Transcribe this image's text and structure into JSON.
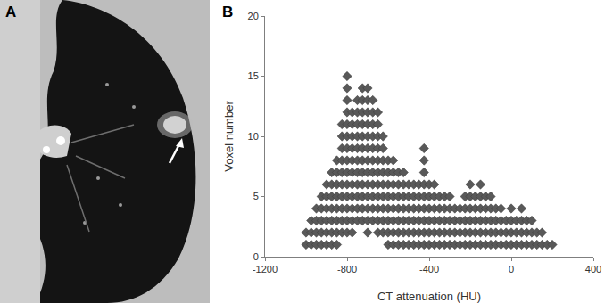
{
  "panel_labels": [
    "A",
    "B"
  ],
  "chart_data": {
    "type": "scatter",
    "marker": "diamond",
    "color": "#595959",
    "x_label": "CT attenuation (HU)",
    "y_label": "Voxel number",
    "xlim": [
      -1200,
      400
    ],
    "xticks": [
      -1200,
      -800,
      -400,
      0,
      400
    ],
    "ylim": [
      0,
      20
    ],
    "yticks": [
      0,
      5,
      10,
      15,
      20
    ],
    "grid": false,
    "x": [
      -1000,
      -1000,
      -975,
      -975,
      -975,
      -950,
      -950,
      -950,
      -950,
      -925,
      -925,
      -925,
      -925,
      -925,
      -900,
      -900,
      -900,
      -900,
      -900,
      -900,
      -875,
      -875,
      -875,
      -875,
      -875,
      -875,
      -875,
      -850,
      -850,
      -850,
      -850,
      -850,
      -850,
      -850,
      -850,
      -825,
      -825,
      -825,
      -825,
      -825,
      -825,
      -825,
      -825,
      -825,
      -825,
      -800,
      -800,
      -800,
      -800,
      -800,
      -800,
      -800,
      -800,
      -800,
      -800,
      -800,
      -800,
      -800,
      -800,
      -775,
      -775,
      -775,
      -775,
      -775,
      -775,
      -775,
      -775,
      -775,
      -775,
      -775,
      -750,
      -750,
      -750,
      -750,
      -750,
      -750,
      -750,
      -750,
      -750,
      -750,
      -750,
      -725,
      -725,
      -725,
      -725,
      -725,
      -725,
      -725,
      -725,
      -725,
      -725,
      -725,
      -725,
      -700,
      -700,
      -700,
      -700,
      -700,
      -700,
      -700,
      -700,
      -700,
      -700,
      -700,
      -700,
      -700,
      -675,
      -675,
      -675,
      -675,
      -675,
      -675,
      -675,
      -675,
      -675,
      -675,
      -675,
      -650,
      -650,
      -650,
      -650,
      -650,
      -650,
      -650,
      -650,
      -650,
      -650,
      -650,
      -625,
      -625,
      -625,
      -625,
      -625,
      -625,
      -625,
      -625,
      -625,
      -600,
      -600,
      -600,
      -600,
      -600,
      -600,
      -600,
      -600,
      -575,
      -575,
      -575,
      -575,
      -575,
      -575,
      -575,
      -575,
      -550,
      -550,
      -550,
      -550,
      -550,
      -550,
      -550,
      -525,
      -525,
      -525,
      -525,
      -525,
      -525,
      -525,
      -500,
      -500,
      -500,
      -500,
      -500,
      -500,
      -475,
      -475,
      -475,
      -475,
      -475,
      -475,
      -450,
      -450,
      -450,
      -450,
      -450,
      -450,
      -425,
      -425,
      -425,
      -425,
      -425,
      -425,
      -425,
      -425,
      -425,
      -400,
      -400,
      -400,
      -400,
      -400,
      -400,
      -375,
      -375,
      -375,
      -375,
      -375,
      -375,
      -350,
      -350,
      -350,
      -350,
      -350,
      -325,
      -325,
      -325,
      -325,
      -325,
      -300,
      -300,
      -300,
      -300,
      -300,
      -275,
      -275,
      -275,
      -275,
      -250,
      -250,
      -250,
      -250,
      -225,
      -225,
      -225,
      -225,
      -225,
      -200,
      -200,
      -200,
      -200,
      -200,
      -200,
      -175,
      -175,
      -175,
      -175,
      -175,
      -150,
      -150,
      -150,
      -150,
      -150,
      -150,
      -125,
      -125,
      -125,
      -125,
      -125,
      -100,
      -100,
      -100,
      -100,
      -100,
      -75,
      -75,
      -75,
      -75,
      -50,
      -50,
      -50,
      -50,
      -25,
      -25,
      -25,
      0,
      0,
      0,
      0,
      25,
      25,
      25,
      50,
      50,
      50,
      50,
      75,
      75,
      75,
      100,
      100,
      100,
      125,
      125,
      150,
      150,
      175,
      200
    ],
    "values": [
      1,
      2,
      1,
      2,
      3,
      1,
      2,
      3,
      4,
      1,
      2,
      3,
      4,
      5,
      1,
      2,
      3,
      4,
      5,
      6,
      1,
      2,
      3,
      4,
      5,
      6,
      7,
      1,
      2,
      3,
      4,
      5,
      6,
      7,
      8,
      2,
      3,
      4,
      5,
      6,
      7,
      8,
      9,
      10,
      11,
      2,
      3,
      4,
      5,
      6,
      7,
      8,
      9,
      10,
      11,
      12,
      13,
      14,
      15,
      2,
      3,
      4,
      5,
      6,
      7,
      8,
      9,
      10,
      11,
      12,
      3,
      4,
      5,
      6,
      7,
      8,
      9,
      10,
      11,
      12,
      13,
      3,
      4,
      5,
      6,
      7,
      8,
      9,
      10,
      11,
      12,
      13,
      14,
      2,
      3,
      4,
      5,
      6,
      7,
      8,
      9,
      10,
      11,
      12,
      13,
      14,
      3,
      4,
      5,
      6,
      7,
      8,
      9,
      10,
      11,
      12,
      13,
      2,
      3,
      4,
      5,
      6,
      7,
      8,
      9,
      10,
      11,
      12,
      2,
      3,
      4,
      5,
      6,
      7,
      8,
      9,
      10,
      1,
      2,
      3,
      4,
      5,
      6,
      7,
      8,
      1,
      2,
      3,
      4,
      5,
      6,
      7,
      8,
      1,
      2,
      3,
      4,
      5,
      6,
      7,
      1,
      2,
      3,
      4,
      5,
      6,
      7,
      1,
      2,
      3,
      4,
      5,
      6,
      1,
      2,
      3,
      4,
      5,
      6,
      1,
      2,
      3,
      4,
      5,
      6,
      1,
      2,
      3,
      4,
      5,
      6,
      7,
      8,
      9,
      1,
      2,
      3,
      4,
      5,
      6,
      1,
      2,
      3,
      4,
      5,
      6,
      1,
      2,
      3,
      4,
      5,
      1,
      2,
      3,
      4,
      5,
      1,
      2,
      3,
      4,
      5,
      1,
      2,
      3,
      4,
      1,
      2,
      3,
      4,
      1,
      2,
      3,
      4,
      5,
      1,
      2,
      3,
      4,
      5,
      6,
      1,
      2,
      3,
      4,
      5,
      1,
      2,
      3,
      4,
      5,
      6,
      1,
      2,
      3,
      4,
      5,
      1,
      2,
      3,
      4,
      5,
      1,
      2,
      3,
      4,
      1,
      2,
      3,
      4,
      1,
      2,
      3,
      1,
      2,
      3,
      4,
      1,
      2,
      3,
      1,
      2,
      3,
      4,
      1,
      2,
      3,
      1,
      2,
      3,
      1,
      2,
      1,
      2,
      1,
      1
    ]
  }
}
